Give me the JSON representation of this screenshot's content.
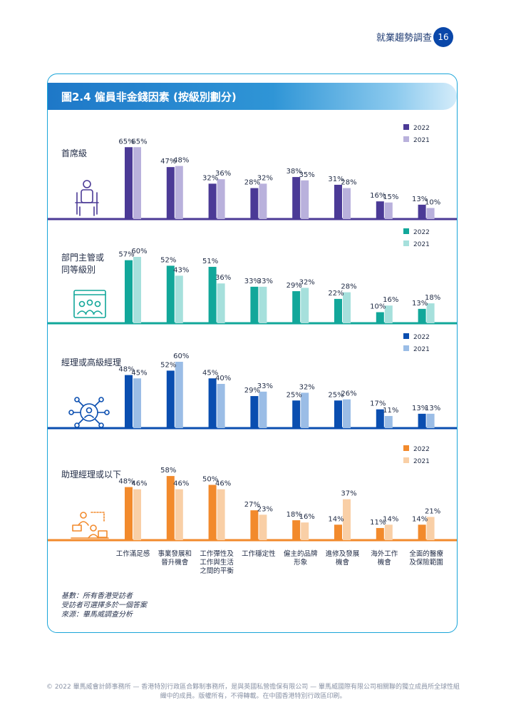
{
  "header": {
    "title": "就業趨勢調查",
    "page_number": "16"
  },
  "figure": {
    "title": "圖2.4 僱員非金錢因素 (按級別劃分)"
  },
  "notes": [
    "基數：所有香港受訪者",
    "受訪者可選擇多於一個答案",
    "來源：畢馬威調查分析"
  ],
  "footer": [
    "© 2022 畢馬威會計師事務所 — 香港特別行政區合夥制事務所，是與英國私營擔保有限公司 — 畢馬威國際有限公司相關聯的獨立成員所全球性組",
    "織中的成員。版權所有，不得轉載。在中國香港特別行政區印刷。"
  ],
  "colors": {
    "purple_2022": "#4b3a96",
    "purple_2021": "#b9b1dc",
    "teal_2022": "#12a79a",
    "teal_2021": "#a6e0dc",
    "blue_2022": "#0a4eb0",
    "blue_2021": "#9bbde6",
    "orange_2022": "#f28a2c",
    "orange_2021": "#f9cfa6"
  },
  "chart_data": {
    "type": "bar",
    "categories": [
      "工作滿足感",
      "事業發展和晉升機會",
      "工作彈性及工作與生活之間的平衡",
      "工作穩定性",
      "僱主的品牌形象",
      "進修及發展機會",
      "海外工作機會",
      "全面的醫療及保險範圍"
    ],
    "category_lines": [
      [
        "工作滿足感"
      ],
      [
        "事業發展和",
        "晉升機會"
      ],
      [
        "工作彈性及",
        "工作與生活",
        "之間的平衡"
      ],
      [
        "工作穩定性"
      ],
      [
        "僱主的品牌",
        "形象"
      ],
      [
        "進修及發展",
        "機會"
      ],
      [
        "海外工作",
        "機會"
      ],
      [
        "全面的醫療",
        "及保險範圍"
      ]
    ],
    "legend": [
      "2022",
      "2021"
    ],
    "value_suffix": "%",
    "panels": [
      {
        "label_lines": [
          "首席級"
        ],
        "icon": "executive-chair-icon",
        "color": "purple",
        "series": [
          {
            "name": "2022",
            "values": [
              65,
              47,
              32,
              28,
              38,
              31,
              16,
              13
            ]
          },
          {
            "name": "2021",
            "values": [
              65,
              48,
              36,
              32,
              35,
              28,
              15,
              10
            ]
          }
        ]
      },
      {
        "label_lines": [
          "部門主管或",
          "同等級別"
        ],
        "icon": "team-presentation-icon",
        "color": "teal",
        "series": [
          {
            "name": "2022",
            "values": [
              57,
              52,
              51,
              33,
              29,
              22,
              10,
              13
            ]
          },
          {
            "name": "2021",
            "values": [
              60,
              43,
              36,
              33,
              32,
              28,
              16,
              18
            ]
          }
        ]
      },
      {
        "label_lines": [
          "經理或高級經理"
        ],
        "icon": "network-manager-icon",
        "color": "blue",
        "series": [
          {
            "name": "2022",
            "values": [
              48,
              52,
              45,
              29,
              25,
              25,
              17,
              13
            ]
          },
          {
            "name": "2021",
            "values": [
              45,
              60,
              40,
              33,
              32,
              26,
              11,
              13
            ]
          }
        ]
      },
      {
        "label_lines": [
          "助理經理或以下"
        ],
        "icon": "desk-workers-icon",
        "color": "orange",
        "series": [
          {
            "name": "2022",
            "values": [
              48,
              58,
              50,
              27,
              18,
              14,
              11,
              14
            ]
          },
          {
            "name": "2021",
            "values": [
              46,
              46,
              46,
              23,
              16,
              37,
              14,
              21
            ]
          }
        ]
      }
    ]
  }
}
